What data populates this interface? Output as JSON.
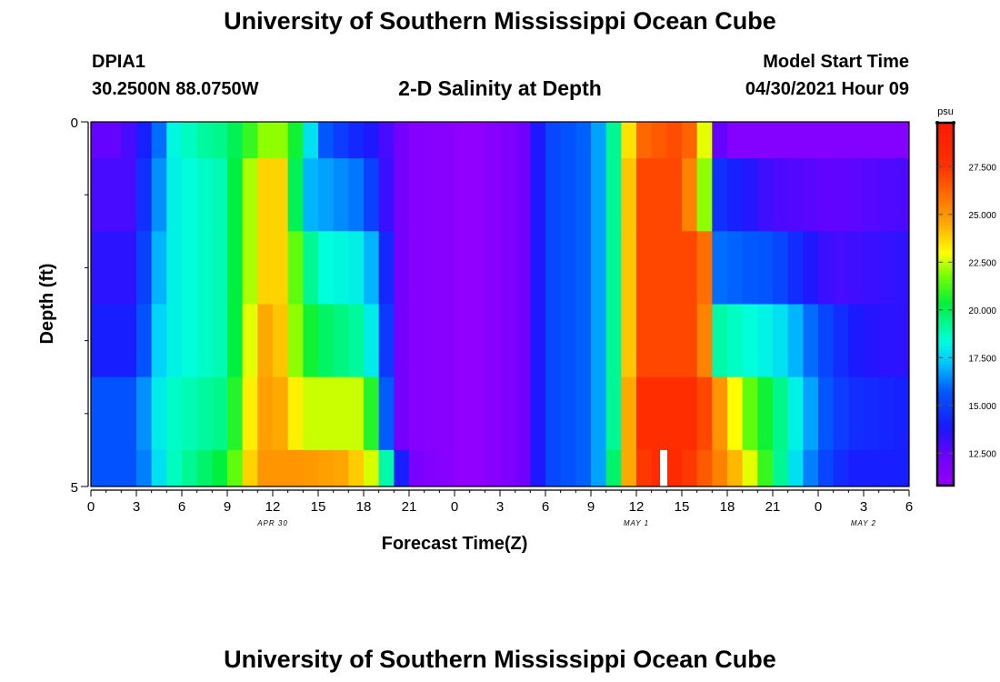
{
  "page": {
    "title_top": "University of Southern Mississippi Ocean Cube",
    "title_bottom": "University of Southern Mississippi Ocean Cube",
    "station_id": "DPIA1",
    "station_coords": "30.2500N  88.0750W",
    "plot_title": "2-D Salinity at Depth",
    "model_start_label": "Model Start Time",
    "model_start_value": "04/30/2021 Hour 09"
  },
  "chart_data": {
    "type": "heatmap",
    "title": "2-D Salinity at Depth",
    "xlabel": "Forecast Time(Z)",
    "ylabel": "Depth (ft)",
    "x_tick_labels": [
      "0",
      "3",
      "6",
      "9",
      "12",
      "15",
      "18",
      "21",
      "0",
      "3",
      "6",
      "9",
      "12",
      "15",
      "18",
      "21",
      "0",
      "3",
      "6"
    ],
    "x_hours_range": [
      0,
      54
    ],
    "date_labels": [
      {
        "label": "APR 30",
        "hour": 12
      },
      {
        "label": "MAY 1",
        "hour": 36
      },
      {
        "label": "MAY 2",
        "hour": 51
      }
    ],
    "y_tick_labels": [
      "0",
      "5"
    ],
    "ylim": [
      0,
      5
    ],
    "depth_bins": [
      [
        0,
        0.5
      ],
      [
        0.5,
        1.5
      ],
      [
        1.5,
        2.5
      ],
      [
        2.5,
        3.5
      ],
      [
        3.5,
        4.5
      ],
      [
        4.5,
        5
      ]
    ],
    "colorbar": {
      "unit": "psu",
      "vmin": 10.8,
      "vmax": 29.8,
      "ticks": [
        "12.500",
        "15.000",
        "17.500",
        "20.000",
        "22.500",
        "25.000",
        "27.500"
      ],
      "tick_values": [
        12.5,
        15.0,
        17.5,
        20.0,
        22.5,
        25.0,
        27.5
      ]
    },
    "gap_marker_hour": 37.8,
    "rows": [
      {
        "depth": "0-0.5 ft",
        "points": [
          [
            0,
            12.5
          ],
          [
            2,
            12.5
          ],
          [
            3.5,
            14.0
          ],
          [
            4.5,
            16.0
          ],
          [
            5,
            18.0
          ],
          [
            7,
            19.0
          ],
          [
            9,
            19.5
          ],
          [
            10,
            20.5
          ],
          [
            11,
            21.5
          ],
          [
            12,
            22.5
          ],
          [
            13,
            21.5
          ],
          [
            14,
            19.5
          ],
          [
            15,
            16.0
          ],
          [
            17,
            14.5
          ],
          [
            19,
            13.5
          ],
          [
            20,
            12.5
          ],
          [
            21,
            11.5
          ],
          [
            24,
            11.2
          ],
          [
            25,
            10.8
          ],
          [
            26,
            11.2
          ],
          [
            28,
            11.8
          ],
          [
            29,
            12.5
          ],
          [
            30,
            15.0
          ],
          [
            33,
            16.0
          ],
          [
            34,
            17.5
          ],
          [
            35,
            21.0
          ],
          [
            36,
            26.0
          ],
          [
            39,
            27.0
          ],
          [
            40,
            25.5
          ],
          [
            41,
            20.0
          ],
          [
            41.5,
            12.5
          ],
          [
            42,
            11.5
          ],
          [
            54,
            11.5
          ]
        ]
      },
      {
        "depth": "0.5-1.5 ft",
        "points": [
          [
            0,
            13.0
          ],
          [
            2.5,
            13.0
          ],
          [
            3.5,
            14.5
          ],
          [
            4.5,
            16.5
          ],
          [
            5,
            18.0
          ],
          [
            9,
            19.0
          ],
          [
            10,
            21.5
          ],
          [
            11,
            23.0
          ],
          [
            12,
            24.5
          ],
          [
            13,
            23.0
          ],
          [
            13.5,
            20.0
          ],
          [
            14.5,
            17.0
          ],
          [
            18,
            16.0
          ],
          [
            19,
            14.0
          ],
          [
            20,
            12.5
          ],
          [
            21,
            11.5
          ],
          [
            24,
            11.2
          ],
          [
            25,
            10.8
          ],
          [
            26,
            11.2
          ],
          [
            28,
            11.8
          ],
          [
            29,
            12.5
          ],
          [
            30,
            15.0
          ],
          [
            33,
            16.0
          ],
          [
            34,
            17.5
          ],
          [
            35,
            21.0
          ],
          [
            36,
            27.0
          ],
          [
            39,
            27.0
          ],
          [
            40,
            24.0
          ],
          [
            41,
            20.0
          ],
          [
            41.5,
            14.5
          ],
          [
            45,
            13.0
          ],
          [
            49,
            12.5
          ],
          [
            54,
            13.0
          ]
        ]
      },
      {
        "depth": "1.5-2.5 ft",
        "points": [
          [
            0,
            13.5
          ],
          [
            2.5,
            13.5
          ],
          [
            3.5,
            15.0
          ],
          [
            4.5,
            17.0
          ],
          [
            5,
            18.0
          ],
          [
            9,
            19.0
          ],
          [
            10,
            21.5
          ],
          [
            11,
            23.0
          ],
          [
            12,
            24.5
          ],
          [
            13,
            23.0
          ],
          [
            14,
            20.0
          ],
          [
            15,
            18.5
          ],
          [
            18,
            18.0
          ],
          [
            19,
            16.0
          ],
          [
            20,
            12.5
          ],
          [
            21,
            11.5
          ],
          [
            24,
            11.2
          ],
          [
            25,
            10.8
          ],
          [
            26,
            11.2
          ],
          [
            28,
            11.8
          ],
          [
            29,
            12.5
          ],
          [
            30,
            15.0
          ],
          [
            33,
            16.0
          ],
          [
            34,
            17.5
          ],
          [
            35,
            21.0
          ],
          [
            36,
            27.0
          ],
          [
            40,
            27.0
          ],
          [
            41,
            25.0
          ],
          [
            41.5,
            16.0
          ],
          [
            45,
            15.5
          ],
          [
            47,
            14.0
          ],
          [
            49,
            13.0
          ],
          [
            54,
            13.5
          ]
        ]
      },
      {
        "depth": "2.5-3.5 ft",
        "points": [
          [
            0,
            14.0
          ],
          [
            2.5,
            14.0
          ],
          [
            3.5,
            15.5
          ],
          [
            4.5,
            17.5
          ],
          [
            5,
            18.0
          ],
          [
            9,
            19.0
          ],
          [
            10,
            21.5
          ],
          [
            11,
            24.0
          ],
          [
            12,
            25.0
          ],
          [
            13,
            23.0
          ],
          [
            14,
            21.0
          ],
          [
            15,
            20.0
          ],
          [
            18,
            19.0
          ],
          [
            19,
            17.0
          ],
          [
            20,
            12.5
          ],
          [
            21,
            11.5
          ],
          [
            24,
            11.2
          ],
          [
            25,
            10.8
          ],
          [
            26,
            11.2
          ],
          [
            28,
            11.8
          ],
          [
            29,
            12.5
          ],
          [
            30,
            15.0
          ],
          [
            33,
            16.0
          ],
          [
            34,
            17.5
          ],
          [
            35,
            21.0
          ],
          [
            36,
            27.0
          ],
          [
            40,
            27.0
          ],
          [
            41,
            24.0
          ],
          [
            41.5,
            19.0
          ],
          [
            45,
            18.0
          ],
          [
            46,
            17.5
          ],
          [
            48,
            15.5
          ],
          [
            50,
            14.0
          ],
          [
            52,
            13.5
          ],
          [
            54,
            13.5
          ]
        ]
      },
      {
        "depth": "3.5-4.5 ft",
        "points": [
          [
            0,
            15.5
          ],
          [
            2.5,
            15.5
          ],
          [
            3.5,
            16.5
          ],
          [
            4.5,
            18.0
          ],
          [
            5,
            18.5
          ],
          [
            9,
            19.5
          ],
          [
            10,
            22.0
          ],
          [
            11,
            24.5
          ],
          [
            12,
            25.0
          ],
          [
            13,
            24.0
          ],
          [
            14,
            22.5
          ],
          [
            18,
            22.5
          ],
          [
            19,
            19.0
          ],
          [
            20,
            12.5
          ],
          [
            21,
            11.5
          ],
          [
            24,
            11.2
          ],
          [
            25,
            10.8
          ],
          [
            26,
            11.2
          ],
          [
            28,
            11.8
          ],
          [
            29,
            12.5
          ],
          [
            30,
            15.0
          ],
          [
            33,
            16.0
          ],
          [
            34,
            17.5
          ],
          [
            35,
            21.0
          ],
          [
            36,
            28.0
          ],
          [
            40,
            28.0
          ],
          [
            41,
            26.0
          ],
          [
            42,
            24.0
          ],
          [
            43,
            22.0
          ],
          [
            45,
            20.0
          ],
          [
            47,
            17.5
          ],
          [
            48,
            16.0
          ],
          [
            50,
            14.5
          ],
          [
            54,
            14.0
          ]
        ]
      },
      {
        "depth": "4.5-5 ft",
        "points": [
          [
            0,
            15.5
          ],
          [
            3,
            15.5
          ],
          [
            4,
            17.0
          ],
          [
            5,
            18.5
          ],
          [
            9,
            20.5
          ],
          [
            10,
            22.5
          ],
          [
            11,
            25.0
          ],
          [
            14,
            25.0
          ],
          [
            17,
            24.5
          ],
          [
            19,
            22.0
          ],
          [
            20,
            16.0
          ],
          [
            21,
            12.0
          ],
          [
            24,
            11.2
          ],
          [
            25,
            10.8
          ],
          [
            26,
            11.2
          ],
          [
            28,
            11.8
          ],
          [
            29,
            12.5
          ],
          [
            30,
            15.0
          ],
          [
            33,
            16.0
          ],
          [
            34,
            17.5
          ],
          [
            35,
            22.0
          ],
          [
            36,
            27.0
          ],
          [
            38,
            28.5
          ],
          [
            40,
            27.0
          ],
          [
            42,
            25.0
          ],
          [
            44,
            22.0
          ],
          [
            45,
            20.0
          ],
          [
            46,
            18.5
          ],
          [
            47,
            17.0
          ],
          [
            48,
            15.5
          ],
          [
            50,
            14.0
          ],
          [
            54,
            14.0
          ]
        ]
      }
    ]
  }
}
